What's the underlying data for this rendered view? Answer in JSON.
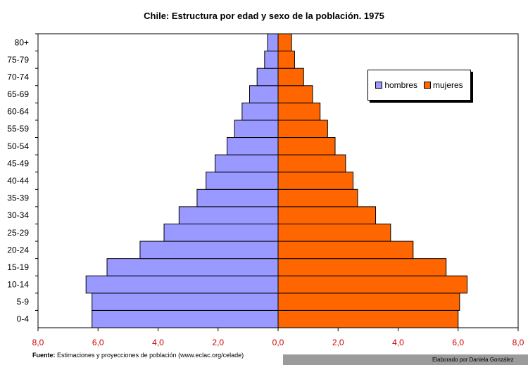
{
  "chart_data": {
    "type": "bar",
    "orientation": "horizontal",
    "title": "Chile: Estructura por edad y sexo de la población. 1975",
    "categories": [
      "0-4",
      "5-9",
      "10-14",
      "15-19",
      "20-24",
      "25-29",
      "30-34",
      "35-39",
      "40-44",
      "45-49",
      "50-54",
      "55-59",
      "60-64",
      "65-69",
      "70-74",
      "75-79",
      "80+"
    ],
    "series": [
      {
        "name": "hombres",
        "color": "#9999ff",
        "values": [
          6.2,
          6.2,
          6.4,
          5.7,
          4.6,
          3.8,
          3.3,
          2.7,
          2.4,
          2.1,
          1.7,
          1.45,
          1.2,
          0.95,
          0.7,
          0.45,
          0.35
        ]
      },
      {
        "name": "mujeres",
        "color": "#ff6600",
        "values": [
          6.0,
          6.05,
          6.3,
          5.6,
          4.5,
          3.75,
          3.25,
          2.65,
          2.5,
          2.25,
          1.9,
          1.65,
          1.4,
          1.15,
          0.85,
          0.55,
          0.45
        ]
      }
    ],
    "xlim": [
      -8,
      8
    ],
    "xticks": [
      "8,0",
      "6,0",
      "4,0",
      "2,0",
      "0,0",
      "2,0",
      "4,0",
      "6,0",
      "8,0"
    ],
    "xtick_color": "#cc0000",
    "grid": false,
    "legend_position": "top-right"
  },
  "footer": {
    "source_label": "Fuente:",
    "source_text": "Estimaciones y proyecciones de población (www.eclac.org/celade)",
    "credit": "Elaborado por Daniela González"
  }
}
